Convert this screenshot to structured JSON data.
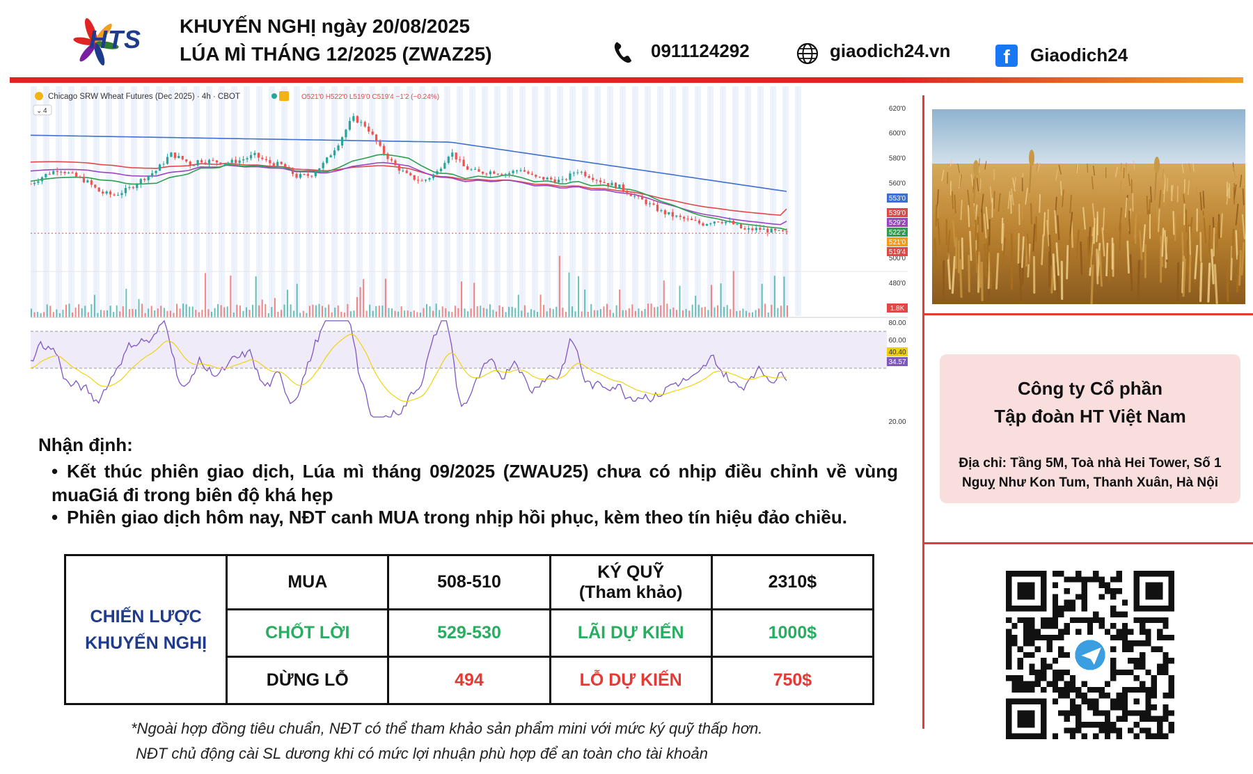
{
  "brand": {
    "logo_text": "HTS",
    "logo_colors": [
      "#e02424",
      "#f0a020",
      "#2e7d32",
      "#1f3b8c",
      "#7b1fa2"
    ]
  },
  "header": {
    "title_line1": "KHUYẾN NGHỊ ngày 20/08/2025",
    "title_line2": "LÚA MÌ THÁNG 12/2025 (ZWAZ25)",
    "phone": "0911124292",
    "phone_icon": "phone-icon",
    "website": "giaodich24.vn",
    "website_icon": "globe-icon",
    "facebook": "Giaodich24",
    "facebook_icon": "facebook-icon",
    "bar_color": "#e02424"
  },
  "chart_data": {
    "type": "candlestick",
    "title": "Chicago SRW Wheat Futures (Dec 2025) · 4h · CBOT",
    "indicator_count": "4",
    "ohlc_label": "O521'0 H522'0 L519'0 C519'4 −1'2 (−0.24%)",
    "price_axis_ticks": [
      "620'0",
      "600'0",
      "580'0",
      "560'0",
      "500'0",
      "480'0"
    ],
    "ylim": [
      460,
      626
    ],
    "close_path": [
      [
        0,
        559
      ],
      [
        10,
        566
      ],
      [
        20,
        571
      ],
      [
        30,
        566
      ],
      [
        40,
        561
      ],
      [
        50,
        552
      ],
      [
        60,
        550
      ],
      [
        70,
        555
      ],
      [
        80,
        563
      ],
      [
        90,
        570
      ],
      [
        100,
        583
      ],
      [
        110,
        578
      ],
      [
        115,
        574
      ],
      [
        120,
        578
      ],
      [
        130,
        577
      ],
      [
        140,
        576
      ],
      [
        150,
        578
      ],
      [
        160,
        582
      ],
      [
        170,
        576
      ],
      [
        180,
        574
      ],
      [
        190,
        565
      ],
      [
        200,
        566
      ],
      [
        210,
        576
      ],
      [
        220,
        592
      ],
      [
        230,
        612
      ],
      [
        240,
        605
      ],
      [
        250,
        587
      ],
      [
        260,
        574
      ],
      [
        270,
        565
      ],
      [
        280,
        561
      ],
      [
        290,
        568
      ],
      [
        300,
        585
      ],
      [
        310,
        572
      ],
      [
        320,
        568
      ],
      [
        330,
        569
      ],
      [
        340,
        567
      ],
      [
        350,
        571
      ],
      [
        360,
        564
      ],
      [
        370,
        563
      ],
      [
        380,
        561
      ],
      [
        390,
        570
      ],
      [
        400,
        565
      ],
      [
        410,
        560
      ],
      [
        420,
        557
      ],
      [
        430,
        550
      ],
      [
        440,
        544
      ],
      [
        450,
        537
      ],
      [
        460,
        533
      ],
      [
        470,
        530
      ],
      [
        480,
        527
      ],
      [
        490,
        530
      ],
      [
        500,
        528
      ],
      [
        510,
        522
      ],
      [
        520,
        523
      ],
      [
        530,
        521
      ],
      [
        540,
        519.5
      ]
    ],
    "moving_averages": [
      {
        "value": 553.0,
        "label": "553'0",
        "color": "#3d6fd1"
      },
      {
        "value": 539.0,
        "label": "539'0",
        "color": "#e04848"
      },
      {
        "value": 529.2,
        "label": "529'2",
        "color": "#9a45c4"
      },
      {
        "value": 522.2,
        "label": "522'2",
        "color": "#2e9e4e"
      },
      {
        "value": 521.0,
        "label": "521'0",
        "color": "#f39c12"
      }
    ],
    "last_price": {
      "value": 519.5,
      "label": "519'4",
      "color": "#e04848"
    },
    "volume_label": "1.8K",
    "rsi": {
      "ticks": [
        "80.00",
        "60.00",
        "20.00"
      ],
      "value_label": "40.40",
      "value_color": "#f0d000",
      "ma_label": "34.57",
      "ma_color": "#7e57c2"
    }
  },
  "company": {
    "name_line1": "Công ty Cổ phần",
    "name_line2": "Tập đoàn HT Việt Nam",
    "address_line1": "Địa chỉ: Tầng 5M, Toà nhà Hei Tower, Số 1",
    "address_line2": "Nguỵ Như Kon Tum, Thanh Xuân, Hà Nội"
  },
  "analysis": {
    "title": "Nhận định:",
    "bullet_char": "•",
    "bullets": [
      "Kết thúc phiên giao dịch, Lúa mì tháng 09/2025 (ZWAU25) chưa có nhịp điều chỉnh về vùng muaGiá đi trong biên độ khá hẹp",
      "Phiên giao dịch hôm nay, NĐT canh MUA trong nhịp hồi phục, kèm theo tín hiệu đảo chiều."
    ]
  },
  "strategy": {
    "caption_line1": "CHIẾN LƯỢC",
    "caption_line2": "KHUYẾN NGHỊ",
    "rows": [
      {
        "action": "MUA",
        "price": "508-510",
        "metric_line1": "KÝ QUỸ",
        "metric_line2": "(Tham khảo)",
        "amount": "2310$"
      },
      {
        "action": "CHỐT LỜI",
        "price": "529-530",
        "metric_line1": "LÃI DỰ KIẾN",
        "amount": "1000$"
      },
      {
        "action": "DỪNG LỖ",
        "price": "494",
        "metric_line1": "LỖ DỰ KIẾN",
        "amount": "750$"
      }
    ],
    "colors": {
      "caption": "#1f3b8c",
      "profit": "#27ae60",
      "loss": "#e53935"
    }
  },
  "footnotes": [
    "*Ngoài hợp đồng tiêu chuẩn, NĐT có thể tham khảo sản phẩm mini với mức ký quỹ thấp hơn.",
    "NĐT chủ động cài SL dương khi có mức lợi nhuận phù hợp để an toàn cho tài khoản"
  ],
  "qr": {
    "icon": "telegram-icon"
  }
}
